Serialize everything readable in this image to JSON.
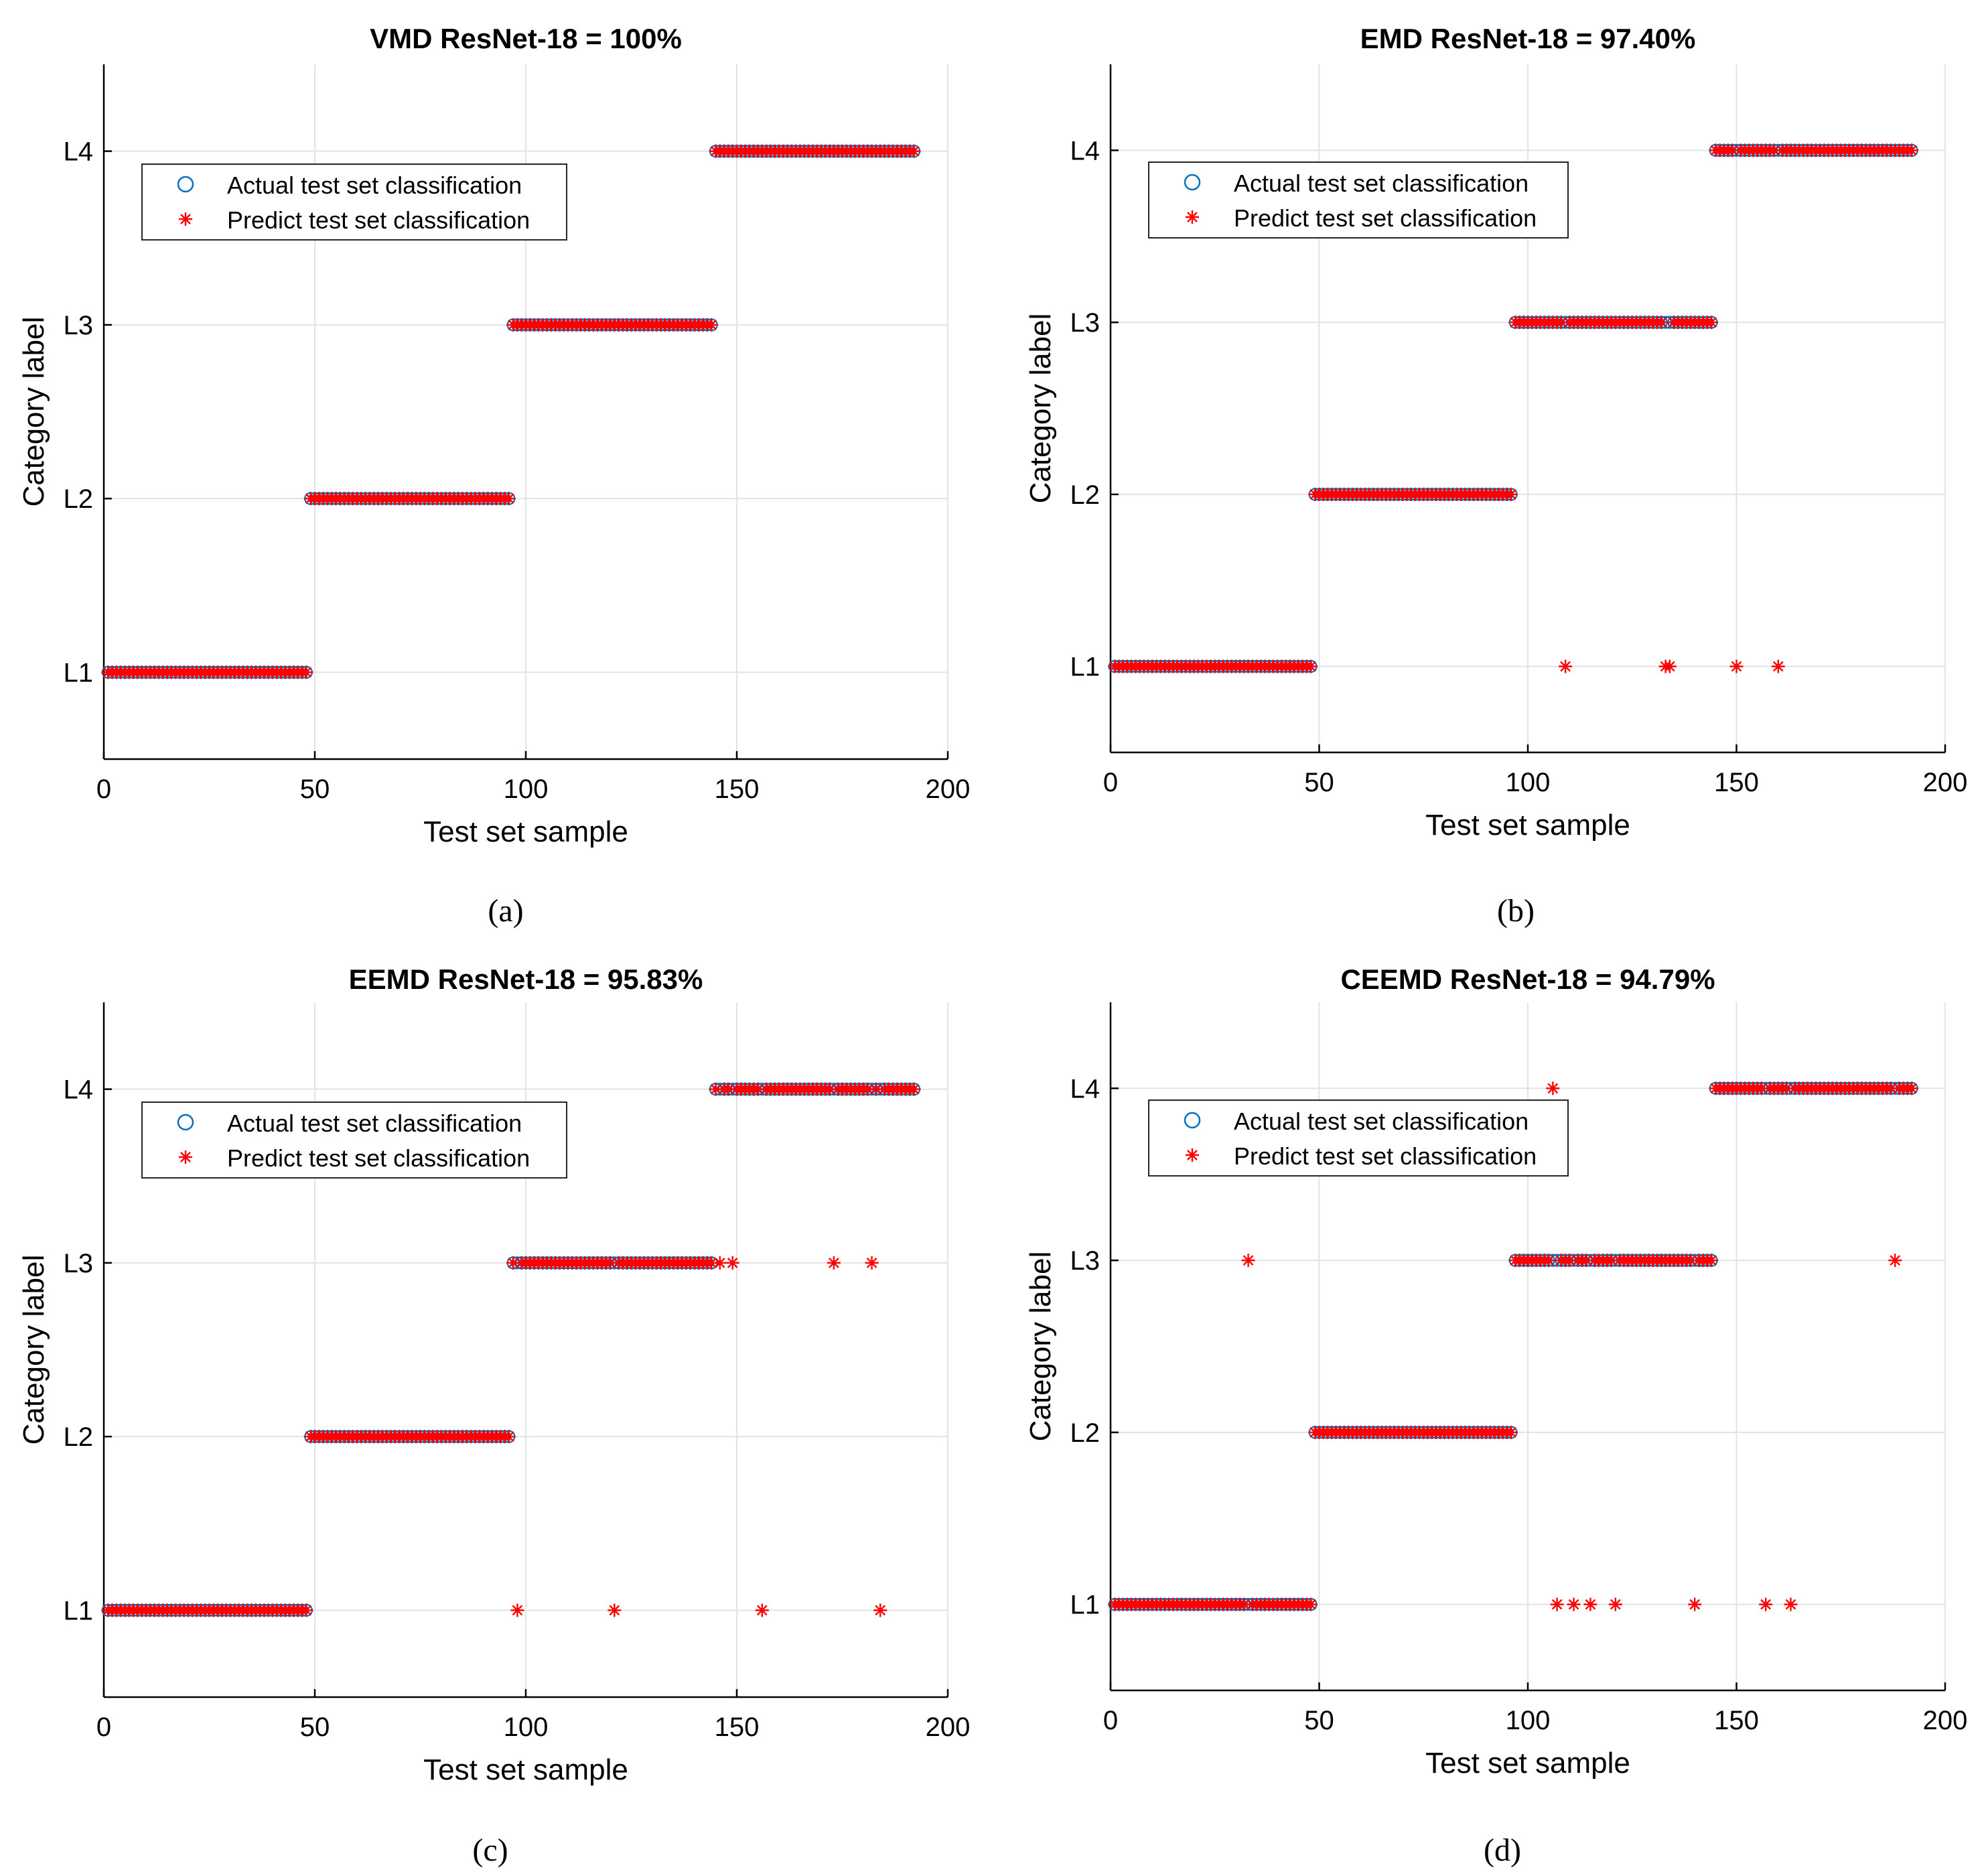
{
  "chart_data": [
    {
      "type": "scatter",
      "panel_label": "(a)",
      "title": "VMD ResNet-18 = 100%",
      "xlabel": "Test set sample",
      "ylabel": "Category label",
      "xlim": [
        0,
        200
      ],
      "ylim": [
        0.5,
        4.5
      ],
      "xticks": [
        "0",
        "50",
        "100",
        "150",
        "200"
      ],
      "yticks": [
        "L1",
        "L2",
        "L3",
        "L4"
      ],
      "grid": true,
      "legend": {
        "position": "top-left",
        "entries": [
          "Actual test set classification",
          "Predict test set classification"
        ]
      },
      "actual": {
        "segments": [
          [
            1,
            48,
            1
          ],
          [
            49,
            96,
            2
          ],
          [
            97,
            144,
            3
          ],
          [
            145,
            192,
            4
          ]
        ],
        "color": "#0072BD",
        "marker": "circle"
      },
      "predicted_misclassified": [],
      "predicted_color": "#FF0000"
    },
    {
      "type": "scatter",
      "panel_label": "(b)",
      "title": "EMD ResNet-18 = 97.40%",
      "xlabel": "Test set sample",
      "ylabel": "Category label",
      "xlim": [
        0,
        200
      ],
      "ylim": [
        0.5,
        4.5
      ],
      "xticks": [
        "0",
        "50",
        "100",
        "150",
        "200"
      ],
      "yticks": [
        "L1",
        "L2",
        "L3",
        "L4"
      ],
      "grid": true,
      "legend": {
        "position": "top-left",
        "entries": [
          "Actual test set classification",
          "Predict test set classification"
        ]
      },
      "actual": {
        "segments": [
          [
            1,
            48,
            1
          ],
          [
            49,
            96,
            2
          ],
          [
            97,
            144,
            3
          ],
          [
            145,
            192,
            4
          ]
        ],
        "color": "#0072BD",
        "marker": "circle"
      },
      "predicted_misclassified": [
        [
          109,
          1
        ],
        [
          133,
          1
        ],
        [
          134,
          1
        ],
        [
          150,
          1
        ],
        [
          160,
          1
        ]
      ],
      "predicted_color": "#FF0000"
    },
    {
      "type": "scatter",
      "panel_label": "(c)",
      "title": "EEMD ResNet-18 = 95.83%",
      "xlabel": "Test set sample",
      "ylabel": "Category label",
      "xlim": [
        0,
        200
      ],
      "ylim": [
        0.5,
        4.5
      ],
      "xticks": [
        "0",
        "50",
        "100",
        "150",
        "200"
      ],
      "yticks": [
        "L1",
        "L2",
        "L3",
        "L4"
      ],
      "grid": true,
      "legend": {
        "position": "top-left",
        "entries": [
          "Actual test set classification",
          "Predict test set classification"
        ]
      },
      "actual": {
        "segments": [
          [
            1,
            48,
            1
          ],
          [
            49,
            96,
            2
          ],
          [
            97,
            144,
            3
          ],
          [
            145,
            192,
            4
          ]
        ],
        "color": "#0072BD",
        "marker": "circle"
      },
      "predicted_misclassified": [
        [
          98,
          1
        ],
        [
          121,
          1
        ],
        [
          149,
          3
        ],
        [
          156,
          1
        ],
        [
          173,
          3
        ],
        [
          182,
          3
        ],
        [
          184,
          1
        ],
        [
          146,
          3
        ]
      ],
      "predicted_color": "#FF0000"
    },
    {
      "type": "scatter",
      "panel_label": "(d)",
      "title": "CEEMD ResNet-18 = 94.79%",
      "xlabel": "Test set sample",
      "ylabel": "Category label",
      "xlim": [
        0,
        200
      ],
      "ylim": [
        0.5,
        4.5
      ],
      "xticks": [
        "0",
        "50",
        "100",
        "150",
        "200"
      ],
      "yticks": [
        "L1",
        "L2",
        "L3",
        "L4"
      ],
      "grid": true,
      "legend": {
        "position": "top-left",
        "entries": [
          "Actual test set classification",
          "Predict test set classification"
        ]
      },
      "actual": {
        "segments": [
          [
            1,
            48,
            1
          ],
          [
            49,
            96,
            2
          ],
          [
            97,
            144,
            3
          ],
          [
            145,
            192,
            4
          ]
        ],
        "color": "#0072BD",
        "marker": "circle"
      },
      "predicted_misclassified": [
        [
          33,
          3
        ],
        [
          106,
          4
        ],
        [
          107,
          1
        ],
        [
          111,
          1
        ],
        [
          115,
          1
        ],
        [
          121,
          1
        ],
        [
          140,
          1
        ],
        [
          157,
          1
        ],
        [
          163,
          1
        ],
        [
          188,
          3
        ]
      ],
      "predicted_color": "#FF0000"
    }
  ]
}
